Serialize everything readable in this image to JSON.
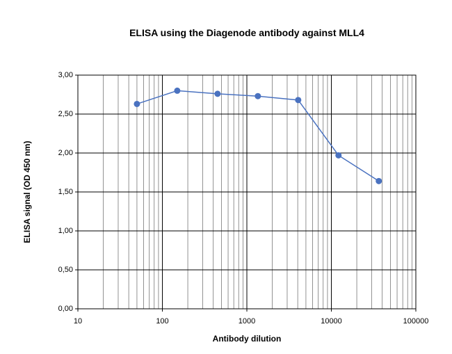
{
  "chart_data": {
    "type": "line",
    "title": "ELISA using the Diagenode antibody against MLL4",
    "x_label": "Antibody dilution",
    "y_label": "ELISA signal (OD 450 nm)",
    "x": [
      50,
      150,
      450,
      1350,
      4050,
      12150,
      36450
    ],
    "series": [
      {
        "color": "#4a72c0",
        "values": [
          2.63,
          2.8,
          2.76,
          2.73,
          2.68,
          1.97,
          1.64
        ]
      }
    ],
    "xscale": "log",
    "xlim": [
      10,
      100000
    ],
    "xticks": [
      10,
      100,
      1000,
      10000,
      100000
    ],
    "ylim": [
      0,
      3
    ],
    "yticks": [
      {
        "value": 0,
        "label": "0,00"
      },
      {
        "value": 0.5,
        "label": "0,50"
      },
      {
        "value": 1,
        "label": "1,00"
      },
      {
        "value": 1.5,
        "label": "1,50"
      },
      {
        "value": 2,
        "label": "2,00"
      },
      {
        "value": 2.5,
        "label": "2,50"
      },
      {
        "value": 3,
        "label": "3,00"
      }
    ],
    "grid": true,
    "minor_grid": true
  }
}
